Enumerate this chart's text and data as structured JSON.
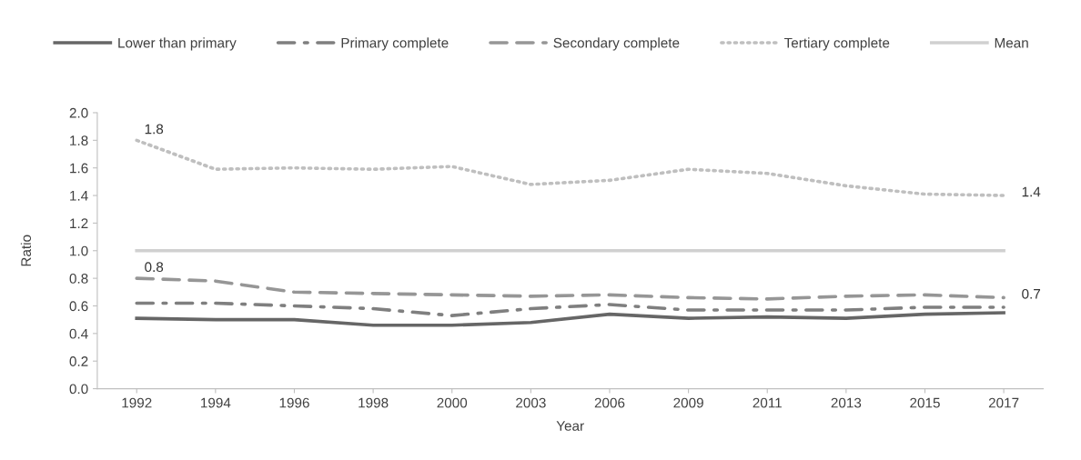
{
  "chart_data": {
    "type": "line",
    "xlabel": "Year",
    "ylabel": "Ratio",
    "categories": [
      "1992",
      "1994",
      "1996",
      "1998",
      "2000",
      "2003",
      "2006",
      "2009",
      "2011",
      "2013",
      "2015",
      "2017"
    ],
    "series": [
      {
        "name": "Lower than primary",
        "color": "#666666",
        "line_style": "solid",
        "values": [
          0.51,
          0.5,
          0.5,
          0.46,
          0.46,
          0.48,
          0.54,
          0.51,
          0.52,
          0.51,
          0.54,
          0.55
        ]
      },
      {
        "name": "Primary complete",
        "color": "#7f7f7f",
        "line_style": "dashdot",
        "values": [
          0.62,
          0.62,
          0.6,
          0.58,
          0.53,
          0.58,
          0.61,
          0.57,
          0.57,
          0.57,
          0.59,
          0.59
        ]
      },
      {
        "name": "Secondary complete",
        "color": "#969696",
        "line_style": "dashed",
        "values": [
          0.8,
          0.78,
          0.7,
          0.69,
          0.68,
          0.67,
          0.68,
          0.66,
          0.65,
          0.67,
          0.68,
          0.66
        ]
      },
      {
        "name": "Tertiary complete",
        "color": "#bfbfbf",
        "line_style": "dotted",
        "values": [
          1.8,
          1.59,
          1.6,
          1.59,
          1.61,
          1.48,
          1.51,
          1.59,
          1.56,
          1.47,
          1.41,
          1.4
        ]
      },
      {
        "name": "Mean",
        "color": "#d0d0d0",
        "line_style": "solid",
        "values": [
          1.0,
          1.0,
          1.0,
          1.0,
          1.0,
          1.0,
          1.0,
          1.0,
          1.0,
          1.0,
          1.0,
          1.0
        ]
      }
    ],
    "annotations": [
      {
        "text": "1.8",
        "x": "1992",
        "y": 1.8
      },
      {
        "text": "1.4",
        "x": "2017",
        "y": 1.4
      },
      {
        "text": "0.8",
        "x": "1992",
        "y": 0.8
      },
      {
        "text": "0.7",
        "x": "2017",
        "y": 0.66
      }
    ],
    "ylim": [
      0,
      2.0
    ],
    "yticks": [
      {
        "value": 0,
        "label": "0.0"
      },
      {
        "value": 0.2,
        "label": "0.2"
      },
      {
        "value": 0.4,
        "label": "0.4"
      },
      {
        "value": 0.6,
        "label": "0.6"
      },
      {
        "value": 0.8,
        "label": "0.8"
      },
      {
        "value": 1.0,
        "label": "1.0"
      },
      {
        "value": 1.2,
        "label": "1.2"
      },
      {
        "value": 1.4,
        "label": "1.4"
      },
      {
        "value": 1.6,
        "label": "1.6"
      },
      {
        "value": 1.8,
        "label": "1.8"
      },
      {
        "value": 2.0,
        "label": "2.0"
      }
    ],
    "grid": false,
    "legend": "top",
    "marker": "none"
  }
}
